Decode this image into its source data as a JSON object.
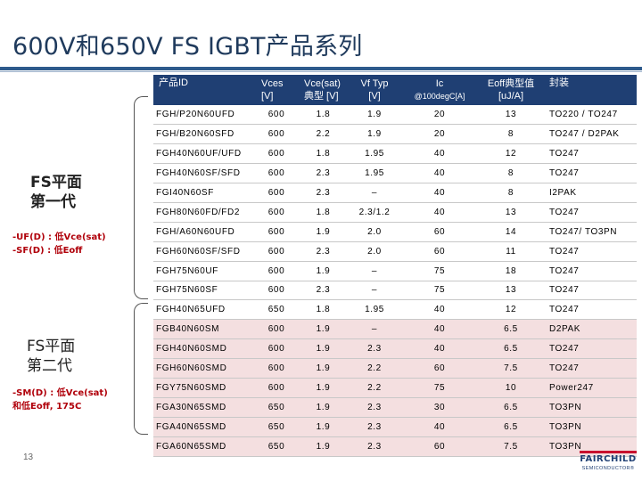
{
  "slide": {
    "title": "600V和650V FS IGBT产品系列",
    "page_number": "13"
  },
  "generations": [
    {
      "label_line1": "FS平面",
      "label_line2": "第一代",
      "note_line1": "-UF(D) : 低Vce(sat)",
      "note_line2": "-SF(D) : 低Eoff"
    },
    {
      "label_line1": "FS平面",
      "label_line2": "第二代",
      "note_line1": "-SM(D) : 低Vce(sat)",
      "note_line2": "和低Eoff, 175C"
    }
  ],
  "table": {
    "headers": [
      {
        "line1": "产品ID",
        "line2": ""
      },
      {
        "line1": "Vces",
        "line2": "[V]"
      },
      {
        "line1": "Vce(sat)",
        "line2": "典型 [V]"
      },
      {
        "line1": "Vf Typ",
        "line2": "[V]"
      },
      {
        "line1": "Ic",
        "line2": "@100degC[A]"
      },
      {
        "line1": "Eoff典型值",
        "line2": "[uJ/A]"
      },
      {
        "line1": "封装",
        "line2": ""
      }
    ],
    "rows": [
      {
        "group": 1,
        "cells": [
          "FGH/P20N60UFD",
          "600",
          "1.8",
          "1.9",
          "20",
          "13",
          "TO220 / TO247"
        ]
      },
      {
        "group": 1,
        "cells": [
          "FGH/B20N60SFD",
          "600",
          "2.2",
          "1.9",
          "20",
          "8",
          "TO247 / D2PAK"
        ]
      },
      {
        "group": 1,
        "cells": [
          "FGH40N60UF/UFD",
          "600",
          "1.8",
          "1.95",
          "40",
          "12",
          "TO247"
        ]
      },
      {
        "group": 1,
        "cells": [
          "FGH40N60SF/SFD",
          "600",
          "2.3",
          "1.95",
          "40",
          "8",
          "TO247"
        ]
      },
      {
        "group": 1,
        "cells": [
          "FGI40N60SF",
          "600",
          "2.3",
          "–",
          "40",
          "8",
          "I2PAK"
        ]
      },
      {
        "group": 1,
        "cells": [
          "FGH80N60FD/FD2",
          "600",
          "1.8",
          "2.3/1.2",
          "40",
          "13",
          "TO247"
        ]
      },
      {
        "group": 1,
        "cells": [
          "FGH/A60N60UFD",
          "600",
          "1.9",
          "2.0",
          "60",
          "14",
          "TO247/ TO3PN"
        ]
      },
      {
        "group": 1,
        "cells": [
          "FGH60N60SF/SFD",
          "600",
          "2.3",
          "2.0",
          "60",
          "11",
          "TO247"
        ]
      },
      {
        "group": 1,
        "cells": [
          "FGH75N60UF",
          "600",
          "1.9",
          "–",
          "75",
          "18",
          "TO247"
        ]
      },
      {
        "group": 1,
        "cells": [
          "FGH75N60SF",
          "600",
          "2.3",
          "–",
          "75",
          "13",
          "TO247"
        ]
      },
      {
        "group": 1,
        "cells": [
          "FGH40N65UFD",
          "650",
          "1.8",
          "1.95",
          "40",
          "12",
          "TO247"
        ]
      },
      {
        "group": 2,
        "cells": [
          "FGB40N60SM",
          "600",
          "1.9",
          "–",
          "40",
          "6.5",
          "D2PAK"
        ]
      },
      {
        "group": 2,
        "cells": [
          "FGH40N60SMD",
          "600",
          "1.9",
          "2.3",
          "40",
          "6.5",
          "TO247"
        ]
      },
      {
        "group": 2,
        "cells": [
          "FGH60N60SMD",
          "600",
          "1.9",
          "2.2",
          "60",
          "7.5",
          "TO247"
        ]
      },
      {
        "group": 2,
        "cells": [
          "FGY75N60SMD",
          "600",
          "1.9",
          "2.2",
          "75",
          "10",
          "Power247"
        ]
      },
      {
        "group": 2,
        "cells": [
          "FGA30N65SMD",
          "650",
          "1.9",
          "2.3",
          "30",
          "6.5",
          "TO3PN"
        ]
      },
      {
        "group": 2,
        "cells": [
          "FGA40N65SMD",
          "650",
          "1.9",
          "2.3",
          "40",
          "6.5",
          "TO3PN"
        ]
      },
      {
        "group": 2,
        "cells": [
          "FGA60N65SMD",
          "650",
          "1.9",
          "2.3",
          "60",
          "7.5",
          "TO3PN"
        ]
      }
    ]
  },
  "logo": {
    "name": "FAIRCHILD",
    "sub": "SEMICONDUCTOR®"
  },
  "colors": {
    "header_bg": "#1f3f73",
    "gen2_row_bg": "#f4dfe0",
    "note_red": "#b0000a",
    "title_blue": "#1f3a5c",
    "logo_red": "#c8102e"
  }
}
